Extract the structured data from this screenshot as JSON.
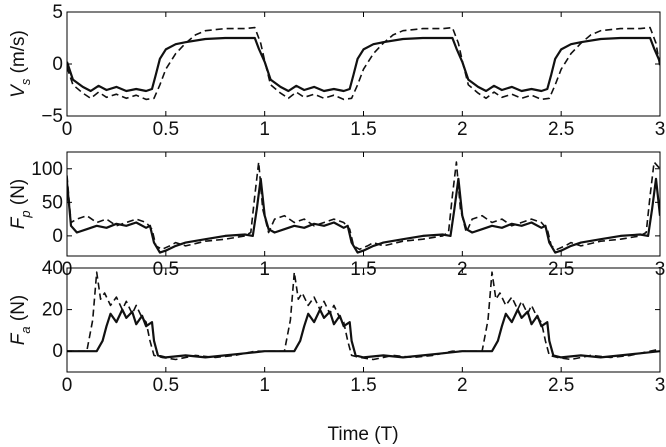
{
  "chart_data": [
    {
      "type": "line",
      "panel": "top",
      "ylabel": {
        "main": "V",
        "sub": "s",
        "unit": " (m/s)"
      },
      "xlim": [
        0,
        3
      ],
      "ylim": [
        -5,
        5
      ],
      "xticks": [
        "0",
        "0.5",
        "1",
        "1.5",
        "2",
        "2.5",
        "3"
      ],
      "yticks": [
        {
          "v": -5,
          "label": "−5"
        },
        {
          "v": 0,
          "label": "0"
        },
        {
          "v": 5,
          "label": "5"
        }
      ],
      "series": [
        {
          "style": "solid",
          "x": [
            0,
            0.03,
            0.08,
            0.12,
            0.16,
            0.2,
            0.25,
            0.3,
            0.35,
            0.4,
            0.43,
            0.45,
            0.47,
            0.5,
            0.55,
            0.6,
            0.7,
            0.8,
            0.9,
            0.95,
            0.97,
            1.0,
            1.03,
            1.08,
            1.12,
            1.16,
            1.2,
            1.25,
            1.3,
            1.35,
            1.4,
            1.43,
            1.45,
            1.47,
            1.5,
            1.55,
            1.6,
            1.7,
            1.8,
            1.9,
            1.95,
            1.97,
            2.0,
            2.03,
            2.08,
            2.12,
            2.16,
            2.2,
            2.25,
            2.3,
            2.35,
            2.4,
            2.43,
            2.45,
            2.47,
            2.5,
            2.55,
            2.6,
            2.7,
            2.8,
            2.9,
            2.95,
            2.97,
            3.0
          ],
          "y": [
            0.2,
            -1.5,
            -2.2,
            -2.6,
            -2.1,
            -2.5,
            -2.2,
            -2.6,
            -2.4,
            -2.6,
            -2.4,
            -1.0,
            0.5,
            1.4,
            1.9,
            2.1,
            2.4,
            2.5,
            2.5,
            2.5,
            1.5,
            0.2,
            -1.5,
            -2.2,
            -2.6,
            -2.1,
            -2.5,
            -2.2,
            -2.6,
            -2.4,
            -2.6,
            -2.4,
            -1.0,
            0.5,
            1.4,
            1.9,
            2.1,
            2.4,
            2.5,
            2.5,
            2.5,
            1.5,
            0.2,
            -1.5,
            -2.2,
            -2.6,
            -2.1,
            -2.5,
            -2.2,
            -2.6,
            -2.4,
            -2.6,
            -2.4,
            -1.0,
            0.5,
            1.4,
            1.9,
            2.1,
            2.4,
            2.5,
            2.5,
            2.5,
            1.5,
            0.2
          ]
        },
        {
          "style": "dashed",
          "x": [
            0,
            0.03,
            0.08,
            0.12,
            0.16,
            0.2,
            0.25,
            0.3,
            0.35,
            0.4,
            0.44,
            0.47,
            0.5,
            0.55,
            0.6,
            0.65,
            0.7,
            0.8,
            0.9,
            0.95,
            0.98,
            1.0,
            1.03,
            1.08,
            1.12,
            1.16,
            1.2,
            1.25,
            1.3,
            1.35,
            1.4,
            1.44,
            1.47,
            1.5,
            1.55,
            1.6,
            1.65,
            1.7,
            1.8,
            1.9,
            1.95,
            1.98,
            2.0,
            2.03,
            2.08,
            2.12,
            2.16,
            2.2,
            2.25,
            2.3,
            2.35,
            2.4,
            2.44,
            2.47,
            2.5,
            2.55,
            2.6,
            2.65,
            2.7,
            2.8,
            2.9,
            2.95,
            2.98,
            3.0
          ],
          "y": [
            -0.3,
            -2.0,
            -2.8,
            -3.3,
            -2.7,
            -3.2,
            -2.9,
            -3.3,
            -3.0,
            -3.4,
            -3.3,
            -2.0,
            -0.5,
            1.0,
            2.0,
            2.8,
            3.2,
            3.4,
            3.4,
            3.5,
            2.0,
            0.3,
            -2.0,
            -2.8,
            -3.3,
            -2.7,
            -3.2,
            -2.9,
            -3.3,
            -3.0,
            -3.4,
            -3.3,
            -2.0,
            -0.5,
            1.0,
            2.0,
            2.8,
            3.2,
            3.4,
            3.4,
            3.5,
            2.0,
            0.3,
            -2.0,
            -2.8,
            -3.3,
            -2.7,
            -3.2,
            -2.9,
            -3.3,
            -3.0,
            -3.4,
            -3.3,
            -2.0,
            -0.5,
            1.0,
            2.0,
            2.8,
            3.2,
            3.4,
            3.4,
            3.5,
            2.0,
            -0.3
          ]
        }
      ]
    },
    {
      "type": "line",
      "panel": "middle",
      "ylabel": {
        "main": "F",
        "sub": "p",
        "unit": " (N)"
      },
      "xlim": [
        0,
        3
      ],
      "ylim": [
        -30,
        125
      ],
      "xticks": [
        "0",
        "0.5",
        "1",
        "1.5",
        "2",
        "2.5",
        "3"
      ],
      "yticks": [
        {
          "v": 0,
          "label": "0"
        },
        {
          "v": 50,
          "label": "50"
        },
        {
          "v": 100,
          "label": "100"
        }
      ],
      "series": [
        {
          "style": "solid",
          "x": [
            0,
            0.02,
            0.05,
            0.1,
            0.15,
            0.2,
            0.25,
            0.3,
            0.35,
            0.4,
            0.42,
            0.44,
            0.47,
            0.5,
            0.55,
            0.6,
            0.7,
            0.8,
            0.9,
            0.94,
            0.96,
            0.98,
            1.0,
            1.02,
            1.05,
            1.1,
            1.15,
            1.2,
            1.25,
            1.3,
            1.35,
            1.4,
            1.42,
            1.44,
            1.47,
            1.5,
            1.55,
            1.6,
            1.7,
            1.8,
            1.9,
            1.94,
            1.96,
            1.98,
            2.0,
            2.02,
            2.05,
            2.1,
            2.15,
            2.2,
            2.25,
            2.3,
            2.35,
            2.4,
            2.42,
            2.44,
            2.47,
            2.5,
            2.55,
            2.6,
            2.7,
            2.8,
            2.9,
            2.94,
            2.96,
            2.98,
            3.0
          ],
          "y": [
            80,
            15,
            5,
            10,
            15,
            12,
            18,
            15,
            20,
            12,
            15,
            -10,
            -25,
            -22,
            -15,
            -10,
            -5,
            0,
            2,
            0,
            40,
            85,
            30,
            10,
            5,
            10,
            15,
            12,
            18,
            15,
            20,
            12,
            15,
            -10,
            -25,
            -22,
            -15,
            -10,
            -5,
            0,
            2,
            0,
            40,
            85,
            30,
            10,
            5,
            10,
            15,
            12,
            18,
            15,
            20,
            12,
            15,
            -10,
            -25,
            -22,
            -15,
            -10,
            -5,
            0,
            2,
            0,
            40,
            85,
            30
          ]
        },
        {
          "style": "dashed",
          "x": [
            0,
            0.02,
            0.05,
            0.1,
            0.15,
            0.2,
            0.25,
            0.3,
            0.35,
            0.4,
            0.43,
            0.45,
            0.48,
            0.52,
            0.55,
            0.6,
            0.7,
            0.8,
            0.9,
            0.93,
            0.95,
            0.97,
            0.99,
            1.02,
            1.05,
            1.1,
            1.15,
            1.2,
            1.25,
            1.3,
            1.35,
            1.4,
            1.43,
            1.45,
            1.48,
            1.52,
            1.55,
            1.6,
            1.7,
            1.8,
            1.9,
            1.93,
            1.95,
            1.97,
            1.99,
            2.02,
            2.05,
            2.1,
            2.15,
            2.2,
            2.25,
            2.3,
            2.35,
            2.4,
            2.43,
            2.45,
            2.48,
            2.52,
            2.55,
            2.6,
            2.7,
            2.8,
            2.9,
            2.93,
            2.95,
            2.97,
            3.0
          ],
          "y": [
            90,
            20,
            25,
            30,
            20,
            25,
            15,
            20,
            25,
            20,
            10,
            -15,
            -20,
            -15,
            -10,
            -15,
            -8,
            -5,
            0,
            5,
            60,
            110,
            40,
            5,
            25,
            30,
            20,
            25,
            15,
            20,
            25,
            20,
            10,
            -15,
            -20,
            -15,
            -10,
            -15,
            -8,
            -5,
            0,
            5,
            60,
            110,
            40,
            5,
            25,
            30,
            20,
            25,
            15,
            20,
            25,
            20,
            10,
            -15,
            -20,
            -15,
            -10,
            -15,
            -8,
            -5,
            0,
            5,
            60,
            110,
            100
          ]
        }
      ]
    },
    {
      "type": "line",
      "panel": "bottom",
      "ylabel": {
        "main": "F",
        "sub": "a",
        "unit": " (N)"
      },
      "xlabel": "Time (T)",
      "xlim": [
        0,
        3
      ],
      "ylim": [
        -10,
        40
      ],
      "xticks": [
        "0",
        "0.5",
        "1",
        "1.5",
        "2",
        "2.5",
        "3"
      ],
      "yticks": [
        {
          "v": 0,
          "label": "0"
        },
        {
          "v": 20,
          "label": "20"
        },
        {
          "v": 40,
          "label": "40"
        }
      ],
      "series": [
        {
          "style": "solid",
          "x": [
            0,
            0.1,
            0.15,
            0.18,
            0.2,
            0.22,
            0.25,
            0.28,
            0.3,
            0.33,
            0.35,
            0.38,
            0.4,
            0.43,
            0.44,
            0.46,
            0.5,
            0.6,
            0.7,
            0.8,
            0.9,
            1.0,
            1.1,
            1.15,
            1.18,
            1.2,
            1.22,
            1.25,
            1.28,
            1.3,
            1.33,
            1.35,
            1.38,
            1.4,
            1.43,
            1.44,
            1.46,
            1.5,
            1.6,
            1.7,
            1.8,
            1.9,
            2.0,
            2.1,
            2.15,
            2.18,
            2.2,
            2.22,
            2.25,
            2.28,
            2.3,
            2.33,
            2.35,
            2.38,
            2.4,
            2.43,
            2.44,
            2.46,
            2.5,
            2.6,
            2.7,
            2.8,
            2.9,
            3.0
          ],
          "y": [
            0,
            0,
            0,
            5,
            12,
            18,
            14,
            20,
            16,
            19,
            13,
            17,
            12,
            14,
            5,
            -2,
            -3,
            -2,
            -3,
            -2,
            -1,
            0,
            0,
            0,
            5,
            12,
            18,
            14,
            20,
            16,
            19,
            13,
            17,
            12,
            14,
            5,
            -2,
            -3,
            -2,
            -3,
            -2,
            -1,
            0,
            0,
            0,
            5,
            12,
            18,
            14,
            20,
            16,
            19,
            13,
            17,
            12,
            14,
            5,
            -2,
            -3,
            -2,
            -3,
            -2,
            -1,
            0
          ]
        },
        {
          "style": "dashed",
          "x": [
            0,
            0.1,
            0.13,
            0.15,
            0.17,
            0.19,
            0.22,
            0.25,
            0.28,
            0.3,
            0.33,
            0.35,
            0.38,
            0.4,
            0.42,
            0.44,
            0.48,
            0.55,
            0.65,
            0.75,
            0.85,
            0.95,
            1.0,
            1.1,
            1.13,
            1.15,
            1.17,
            1.19,
            1.22,
            1.25,
            1.28,
            1.3,
            1.33,
            1.35,
            1.38,
            1.4,
            1.42,
            1.44,
            1.48,
            1.55,
            1.65,
            1.75,
            1.85,
            1.95,
            2.0,
            2.1,
            2.13,
            2.15,
            2.17,
            2.19,
            2.22,
            2.25,
            2.28,
            2.3,
            2.33,
            2.35,
            2.38,
            2.4,
            2.42,
            2.44,
            2.48,
            2.55,
            2.65,
            2.75,
            2.85,
            2.95,
            3.0
          ],
          "y": [
            0,
            0,
            15,
            38,
            25,
            28,
            22,
            26,
            20,
            24,
            18,
            22,
            16,
            14,
            5,
            -2,
            -3,
            -4,
            -2,
            -3,
            -2,
            0,
            0,
            0,
            15,
            38,
            25,
            28,
            22,
            26,
            20,
            24,
            18,
            22,
            16,
            14,
            5,
            -2,
            -3,
            -4,
            -2,
            -3,
            -2,
            0,
            0,
            0,
            15,
            38,
            25,
            28,
            22,
            26,
            20,
            24,
            18,
            22,
            16,
            14,
            5,
            -2,
            -3,
            -4,
            -2,
            -3,
            -2,
            0,
            1
          ]
        }
      ]
    }
  ]
}
